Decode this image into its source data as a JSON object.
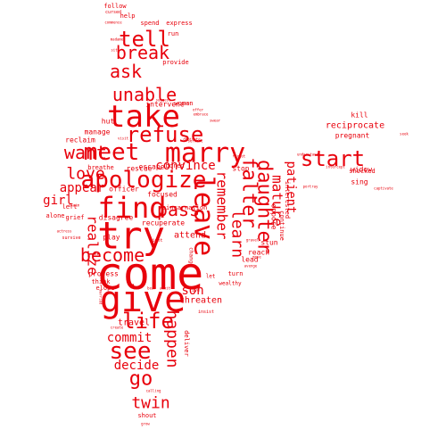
{
  "word_color": "#e8000b",
  "words": [
    "come",
    "give",
    "try",
    "take",
    "find",
    "marry",
    "leave",
    "apologize",
    "meet",
    "refuse",
    "life",
    "see",
    "start",
    "daughter",
    "remember",
    "falter",
    "learn",
    "tell",
    "unable",
    "want",
    "break",
    "ask",
    "love",
    "pass",
    "become",
    "go",
    "happen",
    "twin",
    "mature",
    "patient",
    "commit",
    "convince",
    "decide",
    "appear",
    "girl",
    "realize",
    "son",
    "threaten",
    "travel",
    "attend",
    "reciprocate",
    "kill",
    "pregnant",
    "widow",
    "sing",
    "shocked",
    "stop",
    "reach",
    "lead",
    "stun",
    "oppose",
    "continue",
    "interested",
    "disagree",
    "recuperate",
    "play",
    "focused",
    "reincarnation",
    "rescue",
    "breathe",
    "officer",
    "manage",
    "reclaim",
    "escape",
    "bored",
    "hut",
    "intervene",
    "woman",
    "provide",
    "spend",
    "express",
    "help",
    "follow",
    "run",
    "shout",
    "deliver",
    "turn",
    "profess",
    "think",
    "elope",
    "grief",
    "left",
    "alone",
    "survive",
    "wealthy",
    "change",
    "let",
    "live",
    "insist",
    "right",
    "cursed",
    "commence",
    "madame",
    "sit",
    "suggest",
    "hit",
    "offer",
    "embrace",
    "swear",
    "understand",
    "intercept",
    "seek",
    "captivate",
    "portray",
    "forget",
    "admit",
    "bear",
    "claim",
    "actress",
    "married",
    "create",
    "dominate",
    "servant",
    "visit",
    "grow",
    "calling",
    "gravel",
    "move",
    "avenge"
  ]
}
